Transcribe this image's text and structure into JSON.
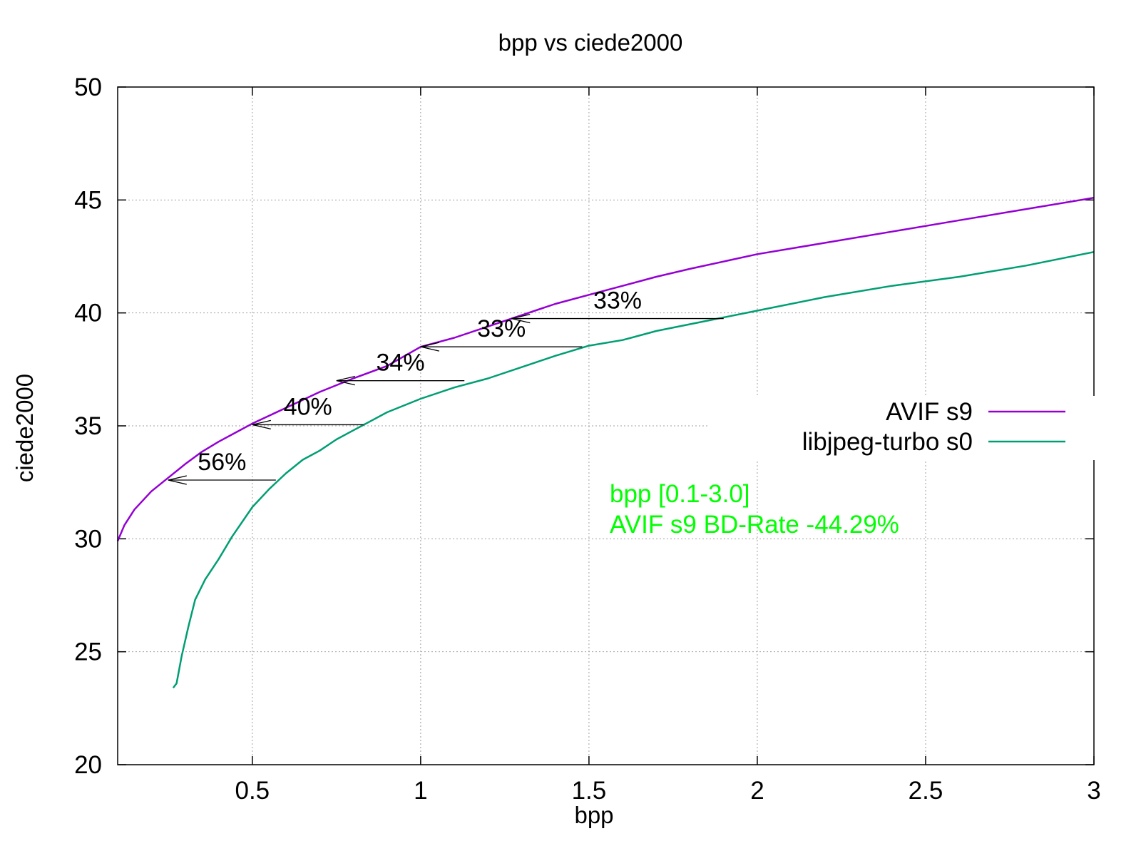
{
  "chart_data": {
    "type": "line",
    "title": "bpp vs ciede2000",
    "xlabel": "bpp",
    "ylabel": "ciede2000",
    "xlim": [
      0.1,
      3
    ],
    "ylim": [
      20,
      50
    ],
    "x_ticks": [
      0.5,
      1,
      1.5,
      2,
      2.5,
      3
    ],
    "x_tick_labels": [
      "0.5",
      "1",
      "1.5",
      "2",
      "2.5",
      "3"
    ],
    "y_ticks": [
      20,
      25,
      30,
      35,
      40,
      45,
      50
    ],
    "y_tick_labels": [
      "20",
      "25",
      "30",
      "35",
      "40",
      "45",
      "50"
    ],
    "grid": true,
    "legend_position": "right",
    "series": [
      {
        "name": "AVIF s9",
        "color": "#9400d3",
        "points": [
          [
            0.1,
            29.9
          ],
          [
            0.12,
            30.6
          ],
          [
            0.15,
            31.3
          ],
          [
            0.2,
            32.1
          ],
          [
            0.25,
            32.7
          ],
          [
            0.3,
            33.3
          ],
          [
            0.35,
            33.85
          ],
          [
            0.4,
            34.3
          ],
          [
            0.45,
            34.7
          ],
          [
            0.5,
            35.1
          ],
          [
            0.6,
            35.8
          ],
          [
            0.7,
            36.5
          ],
          [
            0.8,
            37.1
          ],
          [
            0.9,
            37.65
          ],
          [
            1.0,
            38.5
          ],
          [
            1.1,
            38.9
          ],
          [
            1.2,
            39.4
          ],
          [
            1.3,
            39.9
          ],
          [
            1.4,
            40.4
          ],
          [
            1.5,
            40.8
          ],
          [
            1.6,
            41.2
          ],
          [
            1.7,
            41.6
          ],
          [
            1.8,
            41.95
          ],
          [
            2.0,
            42.6
          ],
          [
            2.2,
            43.1
          ],
          [
            2.4,
            43.6
          ],
          [
            2.6,
            44.1
          ],
          [
            2.8,
            44.6
          ],
          [
            3.0,
            45.1
          ]
        ]
      },
      {
        "name": "libjpeg-turbo s0",
        "color": "#009e73",
        "points": [
          [
            0.265,
            23.4
          ],
          [
            0.275,
            23.6
          ],
          [
            0.29,
            24.8
          ],
          [
            0.31,
            26.1
          ],
          [
            0.33,
            27.3
          ],
          [
            0.36,
            28.2
          ],
          [
            0.4,
            29.1
          ],
          [
            0.44,
            30.1
          ],
          [
            0.5,
            31.4
          ],
          [
            0.55,
            32.2
          ],
          [
            0.6,
            32.9
          ],
          [
            0.65,
            33.5
          ],
          [
            0.7,
            33.9
          ],
          [
            0.75,
            34.4
          ],
          [
            0.8,
            34.8
          ],
          [
            0.85,
            35.2
          ],
          [
            0.9,
            35.6
          ],
          [
            1.0,
            36.2
          ],
          [
            1.1,
            36.7
          ],
          [
            1.2,
            37.1
          ],
          [
            1.3,
            37.6
          ],
          [
            1.4,
            38.1
          ],
          [
            1.5,
            38.55
          ],
          [
            1.6,
            38.8
          ],
          [
            1.7,
            39.2
          ],
          [
            1.8,
            39.5
          ],
          [
            1.9,
            39.8
          ],
          [
            2.0,
            40.1
          ],
          [
            2.2,
            40.7
          ],
          [
            2.4,
            41.2
          ],
          [
            2.6,
            41.6
          ],
          [
            2.8,
            42.1
          ],
          [
            3.0,
            42.7
          ]
        ]
      }
    ],
    "annotations": [
      {
        "label": "56%",
        "from": [
          0.57,
          32.6
        ],
        "to": [
          0.25,
          32.6
        ]
      },
      {
        "label": "40%",
        "from": [
          0.83,
          35.05
        ],
        "to": [
          0.5,
          35.05
        ]
      },
      {
        "label": "34%",
        "from": [
          1.13,
          37.0
        ],
        "to": [
          0.75,
          37.0
        ]
      },
      {
        "label": "33%",
        "from": [
          1.48,
          38.5
        ],
        "to": [
          1.0,
          38.5
        ]
      },
      {
        "label": "33%",
        "from": [
          1.9,
          39.75
        ],
        "to": [
          1.27,
          39.75
        ]
      }
    ],
    "note_color": "#00ff00",
    "note_lines": [
      "bpp [0.1-3.0]",
      "AVIF s9 BD-Rate -44.29%"
    ]
  }
}
